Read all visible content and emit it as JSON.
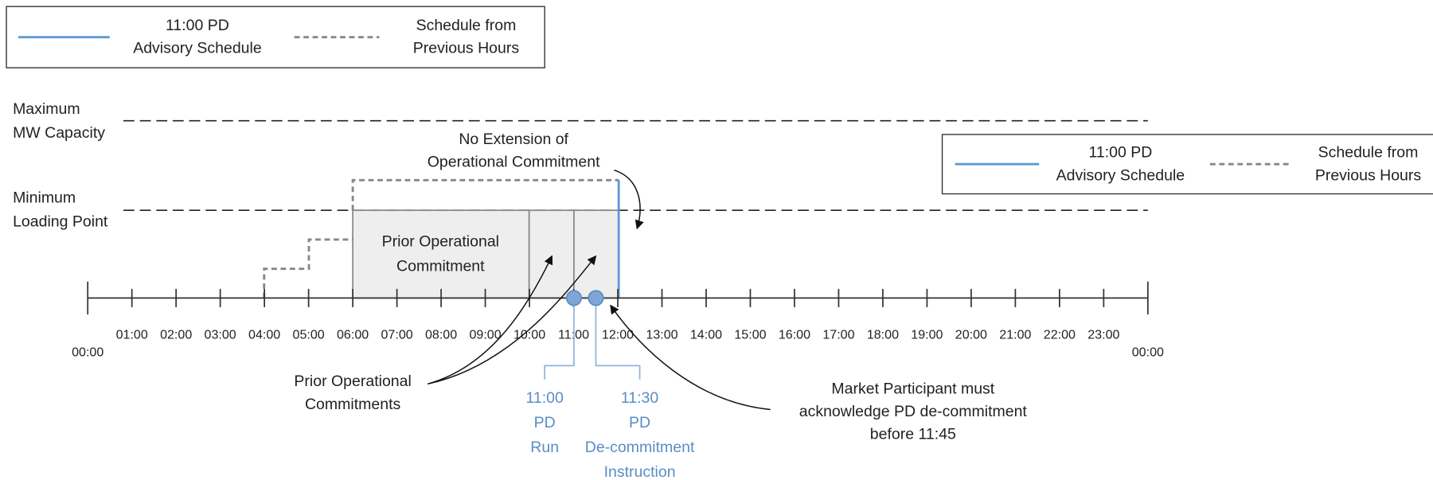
{
  "legends": [
    {
      "items": [
        {
          "label": [
            "11:00 PD",
            "Advisory Schedule"
          ]
        },
        {
          "label": [
            "Schedule from",
            "Previous Hours"
          ]
        }
      ]
    },
    {
      "items": [
        {
          "label": [
            "11:00 PD",
            "Advisory Schedule"
          ]
        },
        {
          "label": [
            "Schedule from",
            "Previous Hours"
          ]
        }
      ]
    }
  ],
  "levels": {
    "maximum": [
      "Maximum",
      "MW Capacity"
    ],
    "minimum": [
      "Minimum",
      "Loading Point"
    ]
  },
  "axis": {
    "ticks": [
      "00:00",
      "01:00",
      "02:00",
      "03:00",
      "04:00",
      "05:00",
      "06:00",
      "07:00",
      "08:00",
      "09:00",
      "10:00",
      "11:00",
      "12:00",
      "13:00",
      "14:00",
      "15:00",
      "16:00",
      "17:00",
      "18:00",
      "19:00",
      "20:00",
      "21:00",
      "22:00",
      "23:00",
      "00:00"
    ]
  },
  "annotations": {
    "no_extension": [
      "No Extension of",
      "Operational Commitment"
    ],
    "prior_box": [
      "Prior Operational",
      "Commitment"
    ],
    "prior_callout": [
      "Prior Operational",
      "Commitments"
    ],
    "pd_run": [
      "11:00",
      "PD",
      "Run"
    ],
    "decommit": [
      "11:30",
      "PD",
      "De-commitment",
      "Instruction"
    ],
    "participant": [
      "Market Participant must",
      "acknowledge PD de-commitment",
      "before 11:45"
    ]
  }
}
